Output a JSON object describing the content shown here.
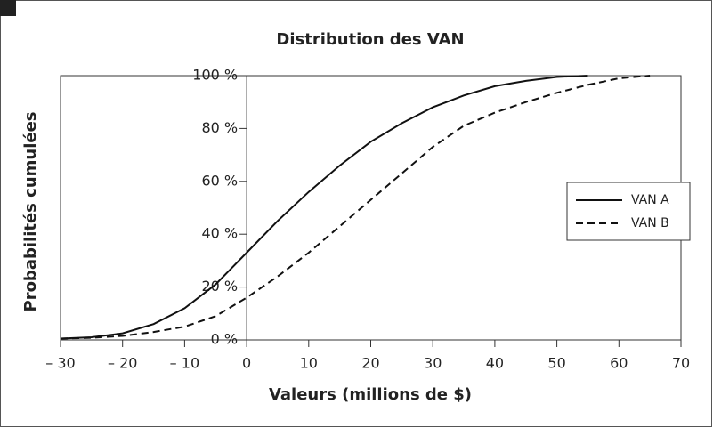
{
  "chart_data": {
    "type": "line",
    "title": "Distribution des VAN",
    "xlabel": "Valeurs (millions de $)",
    "ylabel": "Probabilités cumulées",
    "x": [
      -30,
      -25,
      -20,
      -15,
      -10,
      -5,
      0,
      5,
      10,
      15,
      20,
      25,
      30,
      35,
      40,
      45,
      50,
      55,
      60,
      65
    ],
    "series": [
      {
        "name": "VAN A",
        "color": "#111111",
        "dash": "solid",
        "values": [
          0.5,
          1,
          2.5,
          6,
          12,
          21,
          33,
          45,
          56,
          66,
          75,
          82,
          88,
          92.5,
          96,
          98,
          99.5,
          100,
          null,
          null
        ]
      },
      {
        "name": "VAN B",
        "color": "#111111",
        "dash": "dashed",
        "values": [
          0.5,
          0.8,
          1.5,
          3,
          5,
          9,
          16,
          24,
          33,
          43,
          53,
          63,
          73,
          81,
          86,
          90,
          93.5,
          96.5,
          99,
          100
        ]
      }
    ],
    "xlim": [
      -30,
      70
    ],
    "xticks": [
      {
        "value": -30,
        "label": "– 30"
      },
      {
        "value": -20,
        "label": "– 20"
      },
      {
        "value": -10,
        "label": "– 10"
      },
      0,
      10,
      20,
      30,
      40,
      50,
      60,
      70
    ],
    "ylim": [
      0,
      100
    ],
    "yticks": [
      {
        "value": 0,
        "label": "0 %"
      },
      {
        "value": 20,
        "label": "20 %"
      },
      {
        "value": 40,
        "label": "40 %"
      },
      {
        "value": 60,
        "label": "60 %"
      },
      {
        "value": 80,
        "label": "80 %"
      },
      {
        "value": 100,
        "label": "100 %"
      }
    ],
    "legend": "right"
  }
}
